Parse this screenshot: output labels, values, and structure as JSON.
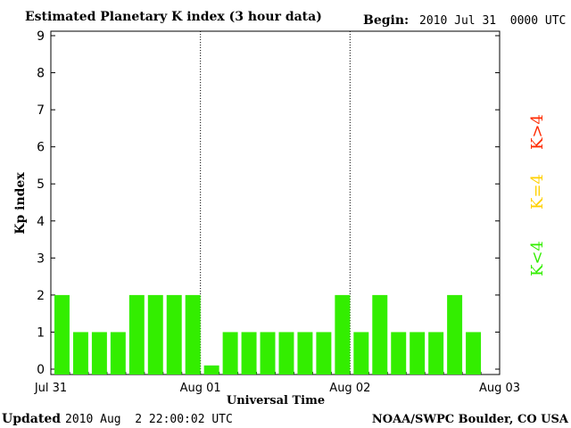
{
  "header": {
    "title": "Estimated Planetary K index (3 hour data)",
    "begin_label": "Begin:",
    "begin_value": "2010 Jul 31  0000 UTC"
  },
  "footer": {
    "updated_label": "Updated",
    "updated_value": "2010 Aug  2 22:00:02 UTC",
    "credit": "NOAA/SWPC Boulder, CO USA"
  },
  "legend": {
    "high": {
      "label": "K>4",
      "color": "#ff2a00"
    },
    "mid": {
      "label": "K=4",
      "color": "#ffd000"
    },
    "low": {
      "label": "K<4",
      "color": "#33ee00"
    }
  },
  "chart_data": {
    "type": "bar",
    "title": "Estimated Planetary K index (3 hour data)",
    "xlabel": "Universal Time",
    "ylabel": "Kp index",
    "ylim": [
      0,
      9
    ],
    "yticks": [
      "0",
      "1",
      "2",
      "3",
      "4",
      "5",
      "6",
      "7",
      "8",
      "9"
    ],
    "xticks": [
      "Jul 31",
      "Aug 01",
      "Aug 02",
      "Aug 03"
    ],
    "bar_color": "#33ee00",
    "day_dividers": "dotted",
    "slots_per_day": 8,
    "values": [
      2,
      1,
      1,
      1,
      2,
      2,
      2,
      2,
      0.1,
      1,
      1,
      1,
      1,
      1,
      1,
      2,
      1,
      2,
      1,
      1,
      1,
      2,
      1
    ]
  }
}
